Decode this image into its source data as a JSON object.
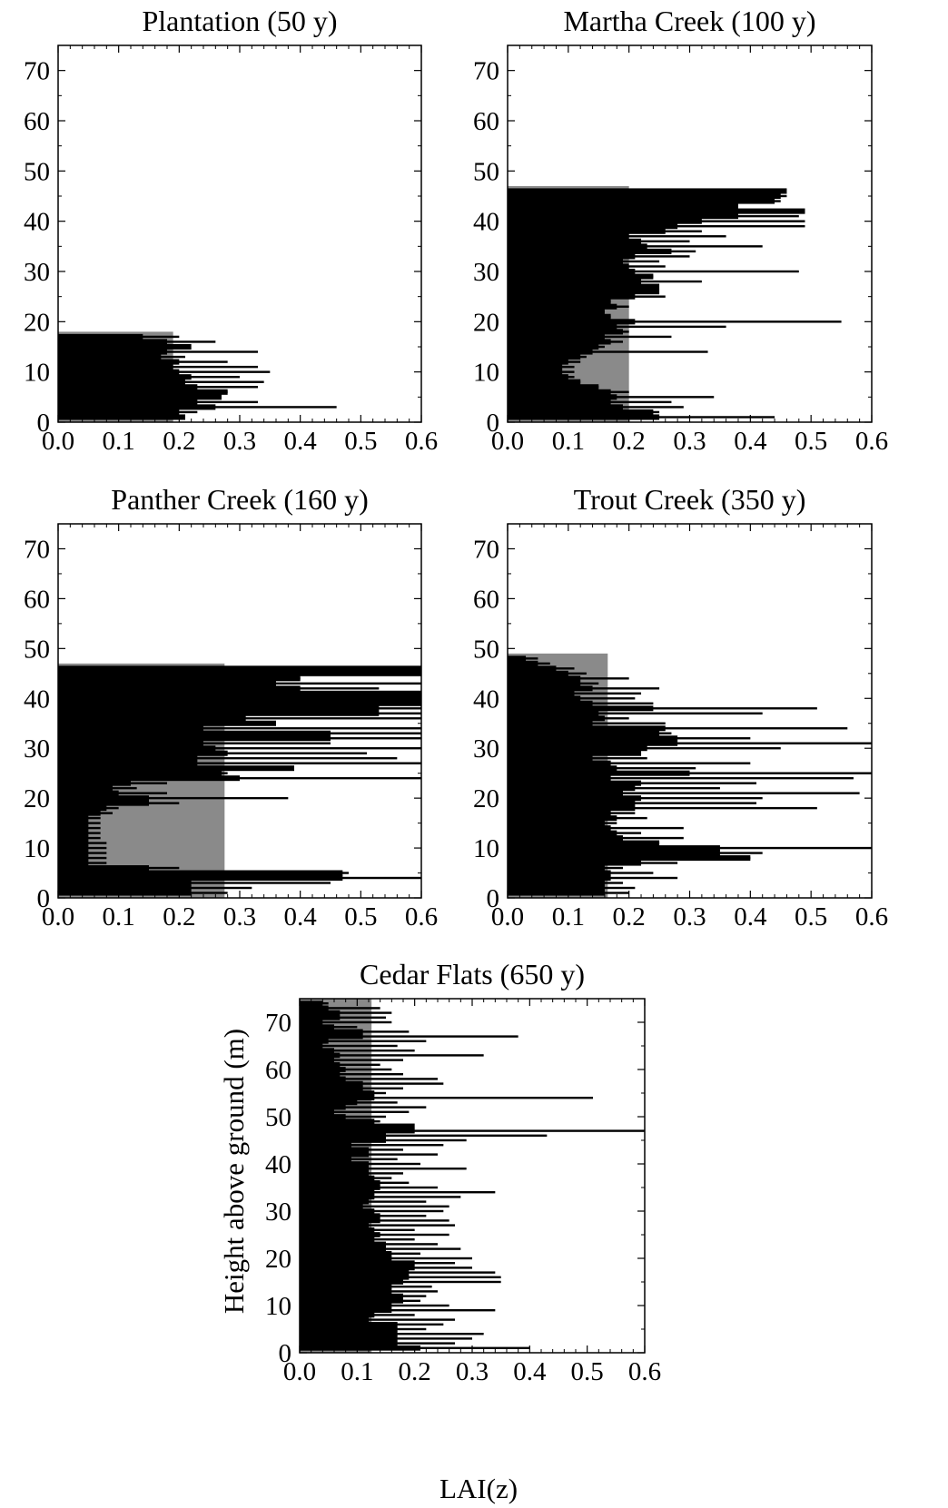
{
  "figure": {
    "ylabel": "Height above ground (m)",
    "xlabel": "LAI(z)"
  },
  "chart_data": [
    {
      "type": "bar",
      "orientation": "horizontal",
      "title": "Plantation (50 y)",
      "xlim": [
        0,
        0.6
      ],
      "ylim": [
        0,
        75
      ],
      "xticks": [
        "0.0",
        "0.1",
        "0.2",
        "0.3",
        "0.4",
        "0.5",
        "0.6"
      ],
      "yticks": [
        "0",
        "10",
        "20",
        "30",
        "40",
        "50",
        "60",
        "70"
      ],
      "grey_bar": {
        "value": 0.19,
        "top": 18
      },
      "heights": [
        1,
        2,
        3,
        4,
        5,
        6,
        7,
        8,
        9,
        10,
        11,
        12,
        13,
        14,
        15,
        16,
        17
      ],
      "values": [
        0.21,
        0.23,
        0.46,
        0.33,
        0.27,
        0.28,
        0.33,
        0.34,
        0.3,
        0.35,
        0.33,
        0.28,
        0.21,
        0.33,
        0.19,
        0.26,
        0.2
      ],
      "thick_values": [
        0.21,
        0.2,
        0.26,
        0.23,
        0.27,
        0.28,
        0.23,
        0.21,
        0.22,
        0.2,
        0.19,
        0.2,
        0.17,
        0.18,
        0.22,
        0.18,
        0.14
      ]
    },
    {
      "type": "bar",
      "orientation": "horizontal",
      "title": "Martha Creek (100 y)",
      "xlim": [
        0,
        0.6
      ],
      "ylim": [
        0,
        75
      ],
      "xticks": [
        "0.0",
        "0.1",
        "0.2",
        "0.3",
        "0.4",
        "0.5",
        "0.6"
      ],
      "yticks": [
        "0",
        "10",
        "20",
        "30",
        "40",
        "50",
        "60",
        "70"
      ],
      "grey_bar": {
        "value": 0.2,
        "top": 47
      },
      "heights": [
        1,
        2,
        3,
        4,
        5,
        6,
        7,
        8,
        9,
        10,
        11,
        12,
        13,
        14,
        15,
        16,
        17,
        18,
        19,
        20,
        21,
        22,
        23,
        24,
        25,
        26,
        27,
        28,
        29,
        30,
        31,
        32,
        33,
        34,
        35,
        36,
        37,
        38,
        39,
        40,
        41,
        42,
        43,
        44,
        45,
        46
      ],
      "values": [
        0.44,
        0.25,
        0.29,
        0.27,
        0.34,
        0.2,
        0.15,
        0.12,
        0.11,
        0.11,
        0.11,
        0.12,
        0.13,
        0.33,
        0.16,
        0.19,
        0.27,
        0.2,
        0.36,
        0.55,
        0.17,
        0.16,
        0.2,
        0.17,
        0.26,
        0.2,
        0.22,
        0.32,
        0.24,
        0.48,
        0.26,
        0.25,
        0.3,
        0.31,
        0.42,
        0.3,
        0.36,
        0.32,
        0.49,
        0.49,
        0.48,
        0.49,
        0.38,
        0.45,
        0.46,
        0.45
      ],
      "thick_values": [
        0.25,
        0.24,
        0.19,
        0.17,
        0.18,
        0.17,
        0.15,
        0.12,
        0.1,
        0.09,
        0.09,
        0.1,
        0.12,
        0.14,
        0.15,
        0.17,
        0.16,
        0.19,
        0.18,
        0.21,
        0.17,
        0.16,
        0.18,
        0.17,
        0.21,
        0.25,
        0.25,
        0.22,
        0.24,
        0.21,
        0.2,
        0.19,
        0.21,
        0.27,
        0.23,
        0.22,
        0.2,
        0.26,
        0.28,
        0.32,
        0.38,
        0.49,
        0.38,
        0.44,
        0.45,
        0.46
      ]
    },
    {
      "type": "bar",
      "orientation": "horizontal",
      "title": "Panther Creek (160 y)",
      "xlim": [
        0,
        0.6
      ],
      "ylim": [
        0,
        75
      ],
      "xticks": [
        "0.0",
        "0.1",
        "0.2",
        "0.3",
        "0.4",
        "0.5",
        "0.6"
      ],
      "yticks": [
        "0",
        "10",
        "20",
        "30",
        "40",
        "50",
        "60",
        "70"
      ],
      "grey_bar": {
        "value": 0.275,
        "top": 47
      },
      "heights": [
        1,
        2,
        3,
        4,
        5,
        6,
        7,
        8,
        9,
        10,
        11,
        12,
        13,
        14,
        15,
        16,
        17,
        18,
        19,
        20,
        21,
        22,
        23,
        24,
        25,
        26,
        27,
        28,
        29,
        30,
        31,
        32,
        33,
        34,
        35,
        36,
        37,
        38,
        39,
        40,
        41,
        42,
        43,
        44,
        45,
        46
      ],
      "values": [
        0.28,
        0.32,
        0.45,
        0.6,
        0.48,
        0.2,
        0.08,
        0.08,
        0.08,
        0.08,
        0.08,
        0.07,
        0.07,
        0.07,
        0.07,
        0.07,
        0.09,
        0.1,
        0.2,
        0.38,
        0.18,
        0.13,
        0.18,
        0.6,
        0.28,
        0.39,
        0.6,
        0.56,
        0.51,
        0.6,
        0.45,
        0.6,
        0.6,
        0.6,
        0.36,
        0.6,
        0.6,
        0.6,
        0.6,
        0.6,
        0.6,
        0.53,
        0.6,
        0.4,
        0.6,
        0.6
      ],
      "thick_values": [
        0.22,
        0.22,
        0.22,
        0.47,
        0.47,
        0.15,
        0.05,
        0.05,
        0.05,
        0.05,
        0.05,
        0.05,
        0.05,
        0.05,
        0.05,
        0.05,
        0.07,
        0.08,
        0.15,
        0.15,
        0.1,
        0.09,
        0.12,
        0.3,
        0.27,
        0.39,
        0.23,
        0.23,
        0.28,
        0.26,
        0.24,
        0.45,
        0.45,
        0.24,
        0.36,
        0.31,
        0.53,
        0.53,
        0.6,
        0.6,
        0.6,
        0.4,
        0.36,
        0.4,
        0.6,
        0.6
      ]
    },
    {
      "type": "bar",
      "orientation": "horizontal",
      "title": "Trout Creek (350 y)",
      "xlim": [
        0,
        0.6
      ],
      "ylim": [
        0,
        75
      ],
      "xticks": [
        "0.0",
        "0.1",
        "0.2",
        "0.3",
        "0.4",
        "0.5",
        "0.6"
      ],
      "yticks": [
        "0",
        "10",
        "20",
        "30",
        "40",
        "50",
        "60",
        "70"
      ],
      "grey_bar": {
        "value": 0.165,
        "top": 49
      },
      "heights": [
        1,
        2,
        3,
        4,
        5,
        6,
        7,
        8,
        9,
        10,
        11,
        12,
        13,
        14,
        15,
        16,
        17,
        18,
        19,
        20,
        21,
        22,
        23,
        24,
        25,
        26,
        27,
        28,
        29,
        30,
        31,
        32,
        33,
        34,
        35,
        36,
        37,
        38,
        39,
        40,
        41,
        42,
        43,
        44,
        45,
        46,
        47,
        48
      ],
      "values": [
        0.2,
        0.21,
        0.19,
        0.28,
        0.24,
        0.19,
        0.28,
        0.4,
        0.42,
        0.6,
        0.25,
        0.29,
        0.22,
        0.29,
        0.18,
        0.23,
        0.21,
        0.51,
        0.41,
        0.42,
        0.58,
        0.35,
        0.41,
        0.57,
        0.6,
        0.31,
        0.4,
        0.23,
        0.22,
        0.45,
        0.6,
        0.4,
        0.27,
        0.56,
        0.26,
        0.2,
        0.42,
        0.51,
        0.24,
        0.21,
        0.22,
        0.25,
        0.15,
        0.2,
        0.13,
        0.11,
        0.07,
        0.05
      ],
      "thick_values": [
        0.16,
        0.16,
        0.16,
        0.17,
        0.17,
        0.16,
        0.22,
        0.4,
        0.35,
        0.35,
        0.25,
        0.19,
        0.18,
        0.17,
        0.16,
        0.18,
        0.17,
        0.21,
        0.21,
        0.22,
        0.19,
        0.21,
        0.22,
        0.17,
        0.3,
        0.18,
        0.17,
        0.14,
        0.22,
        0.23,
        0.28,
        0.28,
        0.25,
        0.26,
        0.14,
        0.16,
        0.15,
        0.24,
        0.14,
        0.12,
        0.11,
        0.14,
        0.12,
        0.12,
        0.1,
        0.08,
        0.05,
        0.03
      ]
    },
    {
      "type": "bar",
      "orientation": "horizontal",
      "title": "Cedar Flats (650 y)",
      "xlim": [
        0,
        0.6
      ],
      "ylim": [
        0,
        75
      ],
      "xticks": [
        "0.0",
        "0.1",
        "0.2",
        "0.3",
        "0.4",
        "0.5",
        "0.6"
      ],
      "yticks": [
        "0",
        "10",
        "20",
        "30",
        "40",
        "50",
        "60",
        "70"
      ],
      "grey_bar": {
        "value": 0.125,
        "top": 75
      },
      "heights": [
        1,
        2,
        3,
        4,
        5,
        6,
        7,
        8,
        9,
        10,
        11,
        12,
        13,
        14,
        15,
        16,
        17,
        18,
        19,
        20,
        21,
        22,
        23,
        24,
        25,
        26,
        27,
        28,
        29,
        30,
        31,
        32,
        33,
        34,
        35,
        36,
        37,
        38,
        39,
        40,
        41,
        42,
        43,
        44,
        45,
        46,
        47,
        48,
        49,
        50,
        51,
        52,
        53,
        54,
        55,
        56,
        57,
        58,
        59,
        60,
        61,
        62,
        63,
        64,
        65,
        66,
        67,
        68,
        69,
        70,
        71,
        72,
        73,
        74
      ],
      "values": [
        0.4,
        0.27,
        0.3,
        0.32,
        0.22,
        0.25,
        0.27,
        0.2,
        0.34,
        0.26,
        0.21,
        0.22,
        0.24,
        0.23,
        0.35,
        0.35,
        0.34,
        0.3,
        0.27,
        0.3,
        0.21,
        0.28,
        0.24,
        0.2,
        0.26,
        0.2,
        0.27,
        0.26,
        0.22,
        0.25,
        0.26,
        0.22,
        0.28,
        0.34,
        0.24,
        0.19,
        0.16,
        0.18,
        0.29,
        0.21,
        0.17,
        0.24,
        0.18,
        0.25,
        0.29,
        0.43,
        0.6,
        0.19,
        0.14,
        0.15,
        0.19,
        0.22,
        0.17,
        0.51,
        0.15,
        0.18,
        0.25,
        0.24,
        0.18,
        0.16,
        0.14,
        0.18,
        0.32,
        0.2,
        0.17,
        0.22,
        0.38,
        0.19,
        0.1,
        0.16,
        0.15,
        0.16,
        0.14,
        0.05
      ],
      "thick_values": [
        0.21,
        0.17,
        0.17,
        0.17,
        0.17,
        0.17,
        0.12,
        0.13,
        0.16,
        0.16,
        0.18,
        0.18,
        0.16,
        0.16,
        0.18,
        0.19,
        0.19,
        0.2,
        0.2,
        0.16,
        0.16,
        0.15,
        0.15,
        0.13,
        0.14,
        0.13,
        0.12,
        0.14,
        0.14,
        0.13,
        0.11,
        0.12,
        0.13,
        0.13,
        0.14,
        0.14,
        0.13,
        0.12,
        0.12,
        0.12,
        0.09,
        0.12,
        0.12,
        0.09,
        0.15,
        0.15,
        0.2,
        0.2,
        0.13,
        0.08,
        0.06,
        0.08,
        0.1,
        0.13,
        0.13,
        0.11,
        0.11,
        0.08,
        0.07,
        0.08,
        0.07,
        0.06,
        0.07,
        0.06,
        0.04,
        0.05,
        0.11,
        0.11,
        0.06,
        0.04,
        0.07,
        0.07,
        0.05,
        0.04
      ]
    }
  ]
}
